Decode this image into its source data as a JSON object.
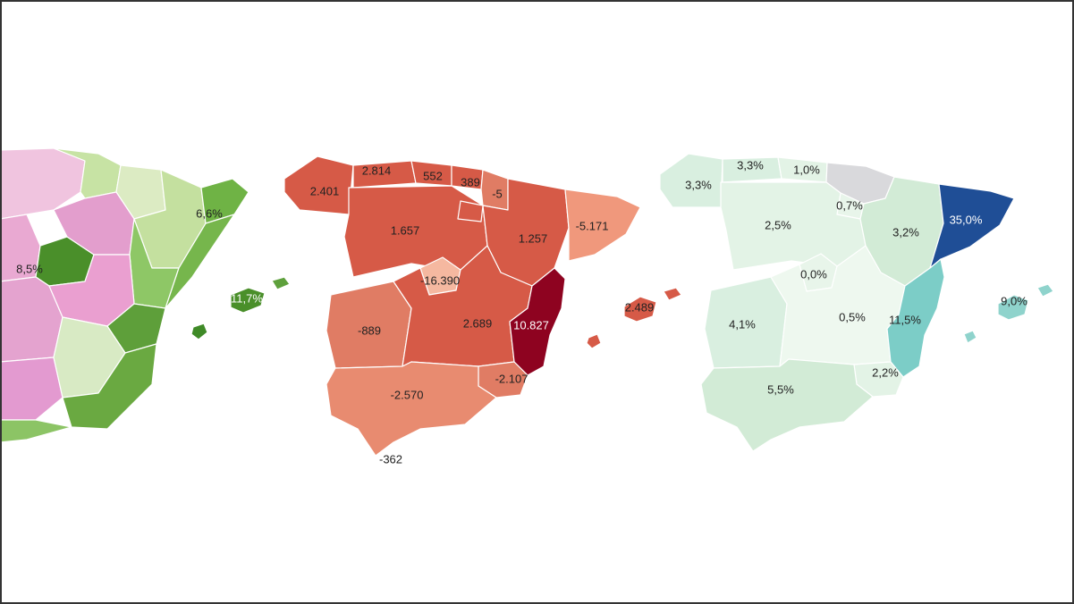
{
  "map_left": {
    "labels": [
      "8,5%",
      "6,6%",
      "11,7%"
    ]
  },
  "map_center": {
    "labels": [
      "2.814",
      "552",
      "389",
      "2.401",
      "-5",
      "1.657",
      "1.257",
      "-5.171",
      "-16.390",
      "-889",
      "2.689",
      "10.827",
      "2.489",
      "-2.107",
      "-2.570",
      "-362"
    ],
    "colors": {
      "base": "#d65a47",
      "dark": "#8e0320",
      "light": "#f5b8a0",
      "mid": "#e07c64",
      "south": "#e88b70"
    }
  },
  "map_right": {
    "labels": [
      "3,3%",
      "1,0%",
      "3,3%",
      "0,7%",
      "2,5%",
      "3,2%",
      "35,0%",
      "0,0%",
      "11,5%",
      "9,0%",
      "4,1%",
      "0,5%",
      "2,2%",
      "5,5%"
    ],
    "colors": {
      "base": "#d9efe0",
      "pale": "#e8f5ea",
      "grey": "#d9d9dc",
      "teal": "#7ccdc7",
      "navy": "#1f4e96"
    }
  }
}
